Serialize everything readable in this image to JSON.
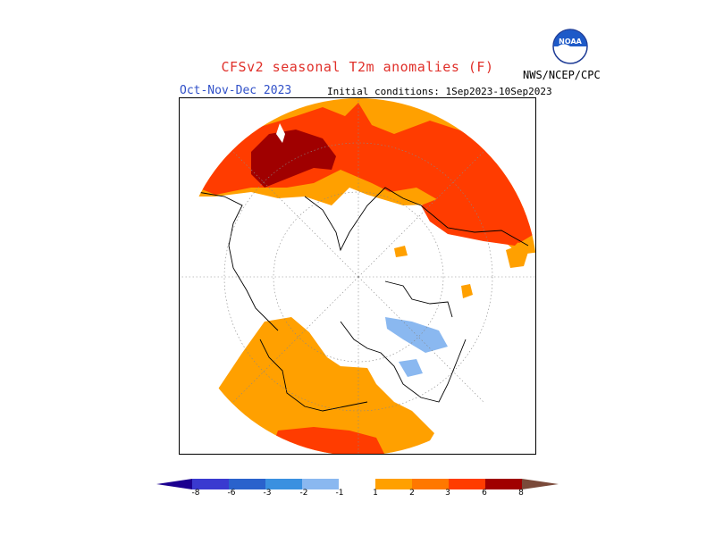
{
  "header": {
    "title": "CFSv2 seasonal T2m anomalies (F)",
    "period": "Oct-Nov-Dec 2023",
    "initial_conditions": "Initial conditions: 1Sep2023-10Sep2023",
    "agency": "NWS/NCEP/CPC",
    "logo_text": "NOAA"
  },
  "legend": {
    "tick_labels": [
      "-8",
      "-6",
      "-3",
      "-2",
      "-1",
      "1",
      "2",
      "3",
      "6",
      "8"
    ],
    "colors": {
      "below_-8": "#1c0090",
      "-8_-6": "#3a3ad0",
      "-6_-3": "#2a62cc",
      "-3_-2": "#3a90e0",
      "-2_-1": "#8ab8f0",
      "-1_1": "#ffffff",
      "1_2": "#ffa000",
      "2_3": "#ff7800",
      "3_6": "#ff3c00",
      "6_8": "#a00000",
      "8_plus": "#c8a090",
      "above_8": "#7a4a3a"
    }
  }
}
